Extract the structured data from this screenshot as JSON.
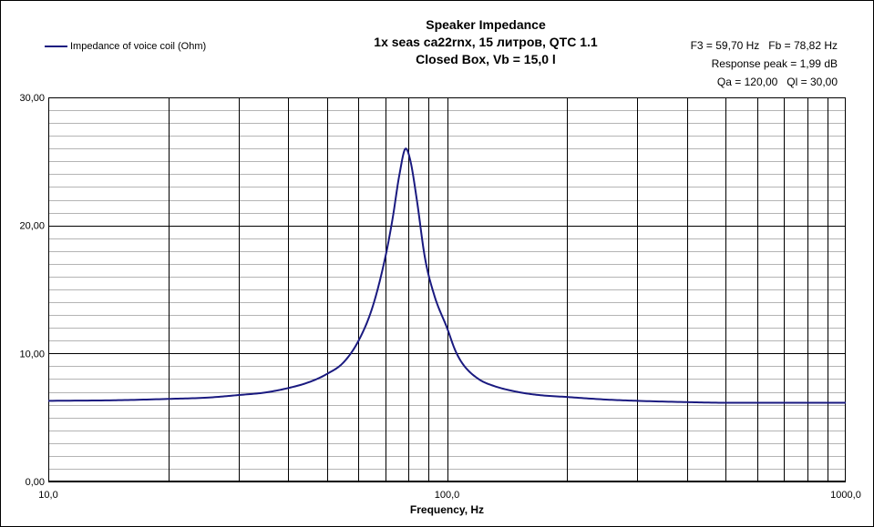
{
  "colors": {
    "series": "#1a1a80",
    "grid_major": "#000000",
    "grid_minor": "#b4b4b4",
    "frame": "#000000"
  },
  "chart_data": {
    "type": "line",
    "title": [
      "Speaker Impedance",
      "1x seas ca22rnx, 15 литров, QTC 1.1",
      "Closed Box, Vb = 15,0 l"
    ],
    "xlabel": "Frequency, Hz",
    "ylabel": "",
    "xscale": "log",
    "xlim": [
      10,
      1000
    ],
    "ylim": [
      0,
      30
    ],
    "x_ticks": [
      {
        "v": 10,
        "label": "10,0"
      },
      {
        "v": 100,
        "label": "100,0"
      },
      {
        "v": 1000,
        "label": "1000,0"
      }
    ],
    "y_ticks": [
      {
        "v": 0,
        "label": "0,00"
      },
      {
        "v": 10,
        "label": "10,00"
      },
      {
        "v": 20,
        "label": "20,00"
      },
      {
        "v": 30,
        "label": "30,00"
      }
    ],
    "y_minor_step": 1,
    "legend_position": "top-left",
    "params": [
      "F3 = 59,70 Hz   Fb = 78,82 Hz",
      "Response peak = 1,99 dB",
      "Qa = 120,00   Ql = 30,00"
    ],
    "series": [
      {
        "name": "Impedance of voice coil (Ohm)",
        "x": [
          10,
          15,
          20,
          25,
          30,
          35,
          40,
          45,
          50,
          55,
          60,
          65,
          70,
          73,
          76,
          78.8,
          81,
          84,
          88,
          93,
          100,
          105,
          110,
          120,
          130,
          150,
          170,
          200,
          250,
          300,
          400,
          500,
          700,
          1000
        ],
        "y": [
          6.3,
          6.35,
          6.45,
          6.55,
          6.75,
          6.95,
          7.3,
          7.75,
          8.4,
          9.3,
          11.0,
          13.6,
          17.5,
          20.5,
          24.0,
          26.0,
          25.0,
          22.0,
          17.5,
          14.5,
          12.0,
          10.2,
          9.1,
          8.0,
          7.5,
          7.0,
          6.75,
          6.6,
          6.4,
          6.3,
          6.2,
          6.15,
          6.15,
          6.15
        ]
      }
    ]
  }
}
